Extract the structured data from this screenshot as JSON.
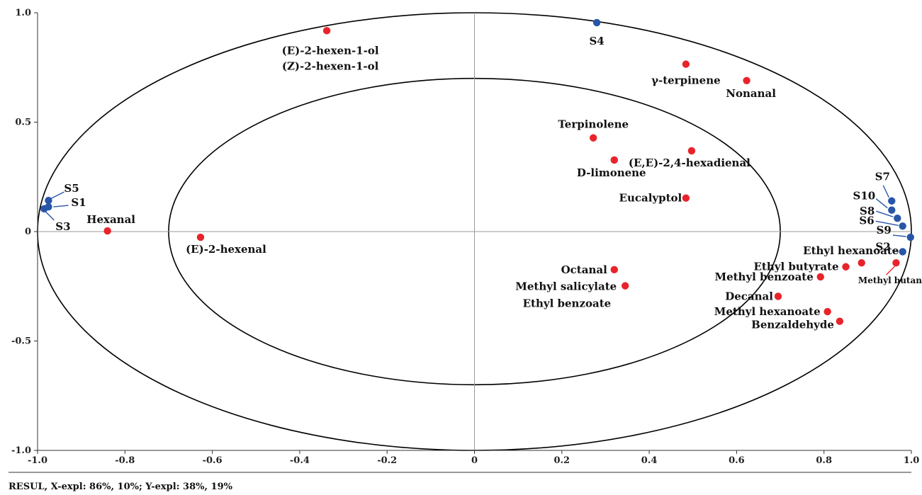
{
  "chart_data": {
    "type": "scatter",
    "title": "",
    "xlabel": "",
    "ylabel": "",
    "xlim": [
      -1.0,
      1.0
    ],
    "ylim": [
      -1.0,
      1.0
    ],
    "x_ticks": [
      "-1.0",
      "-0.8",
      "-0.6",
      "-0.4",
      "-0.2",
      "0",
      "0.2",
      "0.4",
      "0.6",
      "0.8",
      "1.0"
    ],
    "y_ticks": [
      "-1.0",
      "-0.5",
      "0",
      "0.5",
      "1.0"
    ],
    "ellipses": [
      1.0,
      0.7
    ],
    "colors": {
      "samples": "#2855a8",
      "compounds": "#e8242b",
      "ellipse": "#000000",
      "axis": "#9a9a9a"
    },
    "samples": [
      {
        "label": "S1",
        "x": -0.975,
        "y": 0.113
      },
      {
        "label": "S3",
        "x": -0.985,
        "y": 0.104
      },
      {
        "label": "S5",
        "x": -0.975,
        "y": 0.142
      },
      {
        "label": "S4",
        "x": 0.28,
        "y": 0.955
      },
      {
        "label": "S7",
        "x": 0.955,
        "y": 0.14
      },
      {
        "label": "S10",
        "x": 0.955,
        "y": 0.098
      },
      {
        "label": "S8",
        "x": 0.968,
        "y": 0.061
      },
      {
        "label": "S6",
        "x": 0.98,
        "y": 0.025
      },
      {
        "label": "S9",
        "x": 0.998,
        "y": -0.026
      },
      {
        "label": "S2",
        "x": 0.98,
        "y": -0.092
      }
    ],
    "compounds": [
      {
        "label": "(E)-2-hexen-1-ol",
        "label2": "(Z)-2-hexen-1-ol",
        "x": -0.338,
        "y": 0.918
      },
      {
        "label": "γ-terpinene",
        "x": 0.484,
        "y": 0.765
      },
      {
        "label": "Nonanal",
        "x": 0.623,
        "y": 0.69
      },
      {
        "label": "Terpinolene",
        "x": 0.272,
        "y": 0.428
      },
      {
        "label": "D-limonene",
        "x": 0.32,
        "y": 0.327
      },
      {
        "label": "(E,E)-2,4-hexadienal",
        "x": 0.497,
        "y": 0.369
      },
      {
        "label": "Eucalyptol",
        "x": 0.484,
        "y": 0.153
      },
      {
        "label": "Hexanal",
        "x": -0.84,
        "y": 0.003
      },
      {
        "label": "(E)-2-hexenal",
        "x": -0.627,
        "y": -0.026
      },
      {
        "label": "Octanal",
        "x": 0.32,
        "y": -0.174
      },
      {
        "label": "Methyl salicylate",
        "label2": "Ethyl benzoate",
        "x": 0.345,
        "y": -0.248
      },
      {
        "label": "Ethyl hexanoate",
        "x": 0.886,
        "y": -0.143
      },
      {
        "label": "Ethyl butyrate",
        "x": 0.85,
        "y": -0.161
      },
      {
        "label": "Methyl benzoate",
        "x": 0.792,
        "y": -0.207
      },
      {
        "label": "Methyl butanoate",
        "x": 0.965,
        "y": -0.143
      },
      {
        "label": "Decanal",
        "x": 0.695,
        "y": -0.296
      },
      {
        "label": "Methyl hexanoate",
        "x": 0.808,
        "y": -0.366
      },
      {
        "label": "Benzaldehyde",
        "x": 0.836,
        "y": -0.41
      }
    ],
    "footer": "RESUL, X-expl: 86%, 10%; Y-expl: 38%, 19%"
  }
}
